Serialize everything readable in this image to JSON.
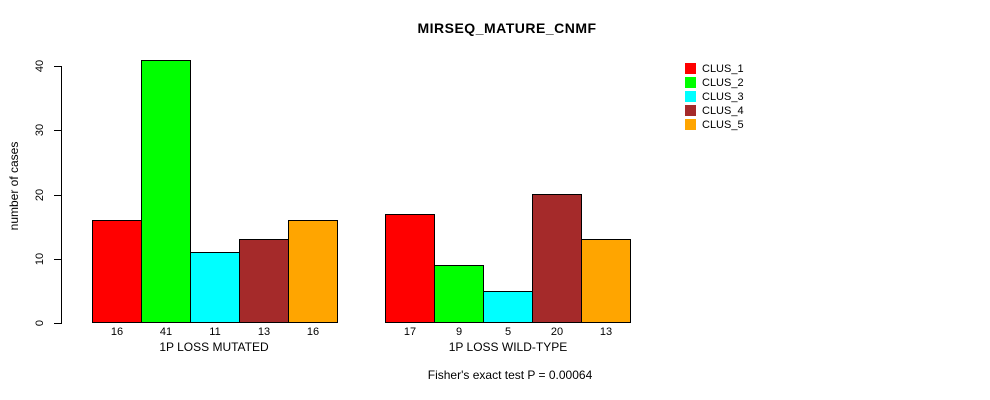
{
  "chart_data": {
    "type": "bar",
    "title": "MIRSEQ_MATURE_CNMF",
    "ylabel": "number of cases",
    "xlabel": "",
    "ylim": [
      0,
      40
    ],
    "yticks": [
      0,
      10,
      20,
      30,
      40
    ],
    "grid": false,
    "legend_position": "right",
    "categories": [
      "1P LOSS MUTATED",
      "1P LOSS WILD-TYPE"
    ],
    "series": [
      {
        "name": "CLUS_1",
        "color": "#ff0000",
        "values": [
          16,
          17
        ]
      },
      {
        "name": "CLUS_2",
        "color": "#00ff00",
        "values": [
          41,
          9
        ]
      },
      {
        "name": "CLUS_3",
        "color": "#00ffff",
        "values": [
          11,
          5
        ]
      },
      {
        "name": "CLUS_4",
        "color": "#a52a2a",
        "values": [
          13,
          20
        ]
      },
      {
        "name": "CLUS_5",
        "color": "#ffa500",
        "values": [
          16,
          13
        ]
      }
    ],
    "bar_value_labels_shown": true,
    "annotation": "Fisher's exact test P = 0.00064"
  }
}
